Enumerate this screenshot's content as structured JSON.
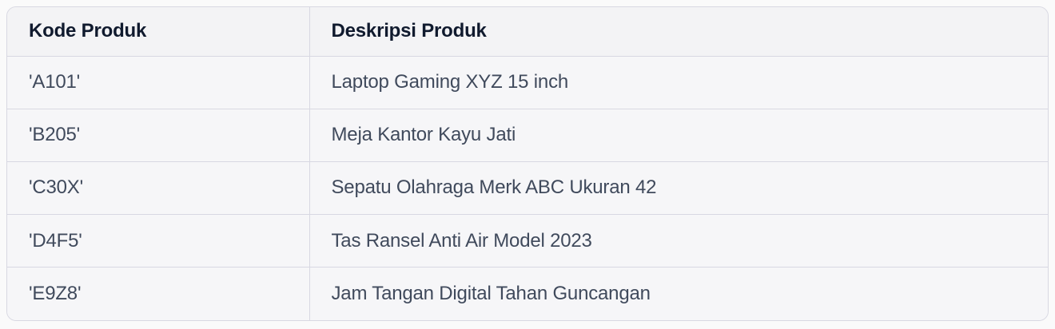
{
  "chart_data": {
    "type": "table",
    "columns": [
      "Kode Produk",
      "Deskripsi Produk"
    ],
    "rows": [
      [
        "'A101'",
        "Laptop Gaming XYZ 15 inch"
      ],
      [
        "'B205'",
        "Meja Kantor Kayu Jati"
      ],
      [
        "'C30X'",
        "Sepatu Olahraga Merk ABC Ukuran 42"
      ],
      [
        "'D4F5'",
        "Tas Ransel Anti Air Model 2023"
      ],
      [
        "'E9Z8'",
        "Jam Tangan Digital Tahan Guncangan"
      ]
    ]
  },
  "colors": {
    "page_background": "#fafafa",
    "header_background": "#f3f3f5",
    "row_background": "#f6f6f8",
    "border": "#d8d8e2",
    "header_text": "#101a2e",
    "body_text": "#404a5c"
  }
}
